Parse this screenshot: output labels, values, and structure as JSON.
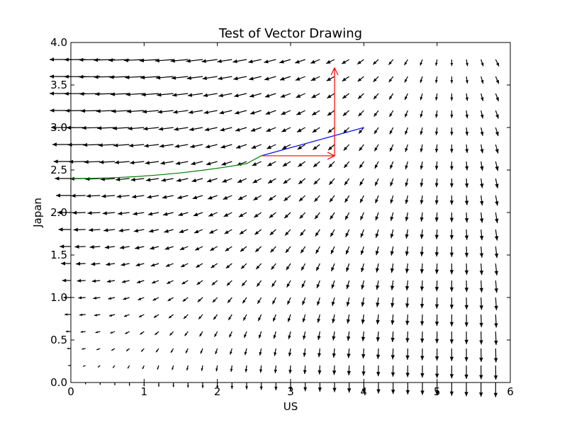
{
  "chart_data": {
    "type": "quiver",
    "title": "Test of Vector Drawing",
    "xlabel": "US",
    "ylabel": "Japan",
    "xlim": [
      0,
      6
    ],
    "ylim": [
      0,
      4
    ],
    "xticks": [
      "0",
      "1",
      "2",
      "3",
      "4",
      "5",
      "6"
    ],
    "yticks": [
      "0.0",
      "0.5",
      "1.0",
      "1.5",
      "2.0",
      "2.5",
      "3.0",
      "3.5",
      "4.0"
    ],
    "grid": false,
    "vector_field": {
      "x_start": 0.0,
      "x_step": 0.2,
      "x_count": 30,
      "y_start": 0.0,
      "y_step": 0.2,
      "y_count": 20,
      "color": "#000000",
      "description_values": "vectors point leftward in upper-left region and downward in lower-right region"
    },
    "series": [
      {
        "type": "curve",
        "color": "#008000",
        "x": [
          0.0,
          0.3,
          0.6,
          0.9,
          1.2,
          1.5,
          1.8,
          2.1,
          2.4,
          2.6
        ],
        "y": [
          2.4,
          2.402,
          2.41,
          2.423,
          2.442,
          2.466,
          2.497,
          2.533,
          2.575,
          2.667
        ]
      },
      {
        "type": "line",
        "color": "#0000ff",
        "x": [
          2.6,
          4.0
        ],
        "y": [
          2.667,
          3.0
        ]
      }
    ],
    "arrows": [
      {
        "color": "#ff0000",
        "x_tail": 2.6,
        "y_tail": 2.667,
        "x_head": 3.6,
        "y_head": 2.667
      },
      {
        "color": "#ff0000",
        "x_tail": 3.6,
        "y_tail": 2.667,
        "x_head": 3.6,
        "y_head": 3.7
      }
    ]
  }
}
